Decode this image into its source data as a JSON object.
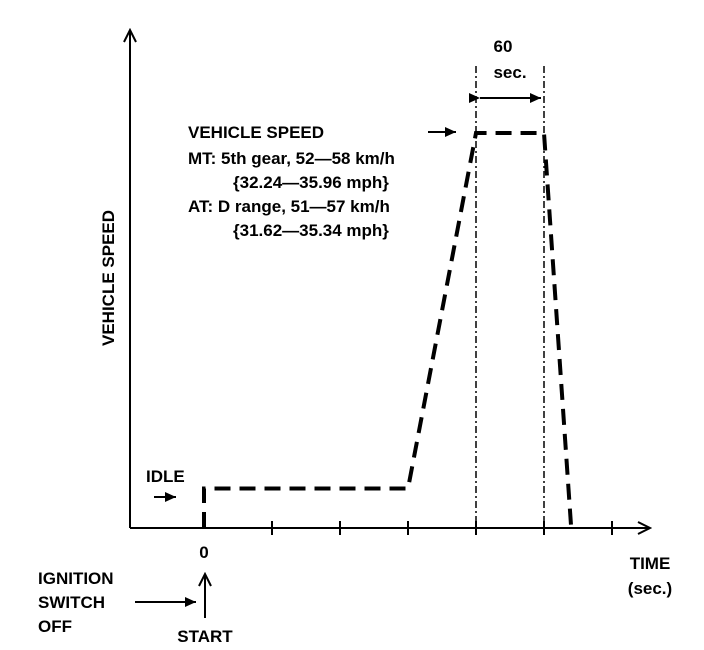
{
  "chart_data": {
    "type": "line",
    "xlabel": [
      "TIME",
      "(sec.)"
    ],
    "ylabel": "VEHICLE SPEED",
    "x_tick_label": "0",
    "interval": {
      "value_line1": "60",
      "value_line2": "sec."
    },
    "annotations": {
      "vehicle_speed_title": "VEHICLE SPEED",
      "mt_line1": "MT:  5th gear, 52—58 km/h",
      "mt_line2": "{32.24—35.96 mph}",
      "at_line1": "AT:  D range, 51—57 km/h",
      "at_line2": "{31.62—35.34 mph}",
      "idle": "IDLE",
      "ignition_line1": "IGNITION",
      "ignition_line2": "SWITCH",
      "ignition_line3": "OFF",
      "start": "START"
    },
    "speed_profile": [
      {
        "x": 0,
        "y": 0
      },
      {
        "x": 0,
        "y": 1
      },
      {
        "x": 3,
        "y": 1
      },
      {
        "x": 4,
        "y": 10
      },
      {
        "x": 5,
        "y": 10
      },
      {
        "x": 5.4,
        "y": 0
      }
    ],
    "dashdot_marks_x": [
      4,
      5
    ],
    "xlim": [
      -1,
      6.6
    ],
    "ylim": [
      0,
      11
    ]
  }
}
